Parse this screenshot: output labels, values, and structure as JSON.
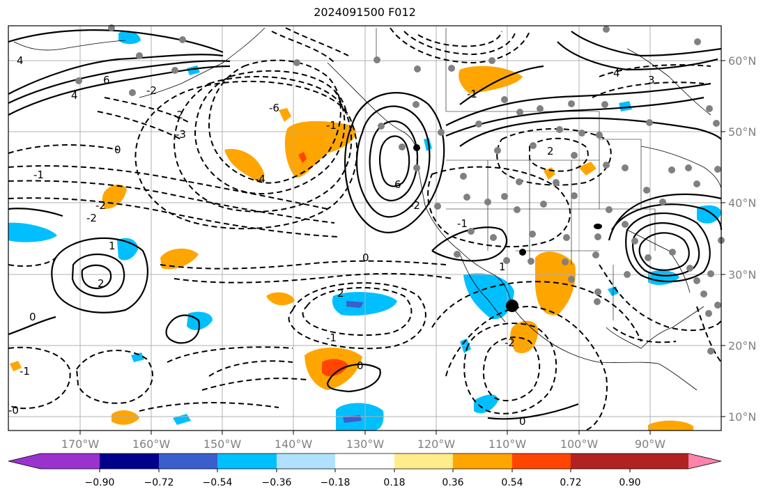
{
  "title": "2024091500 F012",
  "map": {
    "lon_ticks": [
      "170°W",
      "160°W",
      "150°W",
      "140°W",
      "130°W",
      "120°W",
      "110°W",
      "100°W",
      "90°W"
    ],
    "lat_ticks": [
      "10°N",
      "20°N",
      "30°N",
      "40°N",
      "50°N",
      "60°N"
    ],
    "grid": true,
    "contour_labels": [
      "4",
      "6",
      "4",
      "-2",
      "-3",
      "-2",
      "0",
      "-1",
      "-6",
      "-4",
      "-2",
      "-1",
      "1",
      "2",
      "0",
      "-1",
      "-2",
      "2",
      "-1",
      "-2",
      "0",
      "0",
      "-1",
      "6",
      "1",
      "4",
      "3",
      "2",
      "0",
      "-0",
      "-1",
      "-2"
    ]
  },
  "colorbar": {
    "ticks": [
      "−0.90",
      "−0.72",
      "−0.54",
      "−0.36",
      "−0.18",
      "0.18",
      "0.36",
      "0.54",
      "0.72",
      "0.90"
    ],
    "colors": [
      "#9a32cd",
      "#00008b",
      "#3a5fcd",
      "#00bfff",
      "#b0e2ff",
      "#ffffff",
      "#ffec8b",
      "#ffa500",
      "#ff4500",
      "#b22222",
      "#ff82ab"
    ]
  }
}
